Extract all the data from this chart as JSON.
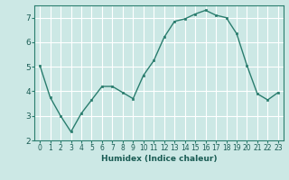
{
  "x": [
    0,
    1,
    2,
    3,
    4,
    5,
    6,
    7,
    8,
    9,
    10,
    11,
    12,
    13,
    14,
    15,
    16,
    17,
    18,
    19,
    20,
    21,
    22,
    23
  ],
  "y": [
    5.05,
    3.75,
    3.0,
    2.35,
    3.1,
    3.65,
    4.2,
    4.2,
    3.95,
    3.7,
    4.65,
    5.25,
    6.2,
    6.85,
    6.95,
    7.15,
    7.3,
    7.1,
    7.0,
    6.35,
    5.05,
    3.9,
    3.65,
    3.95
  ],
  "xlabel": "Humidex (Indice chaleur)",
  "ylim": [
    2,
    7.5
  ],
  "xlim": [
    -0.5,
    23.5
  ],
  "yticks": [
    2,
    3,
    4,
    5,
    6,
    7
  ],
  "xticks": [
    0,
    1,
    2,
    3,
    4,
    5,
    6,
    7,
    8,
    9,
    10,
    11,
    12,
    13,
    14,
    15,
    16,
    17,
    18,
    19,
    20,
    21,
    22,
    23
  ],
  "line_color": "#2a7d6e",
  "marker_color": "#2a7d6e",
  "bg_color": "#cce8e5",
  "grid_color": "#ffffff",
  "tick_label_color": "#1a5c54",
  "xlabel_color": "#1a5c54",
  "tick_fontsize": 5.5,
  "xlabel_fontsize": 6.5
}
